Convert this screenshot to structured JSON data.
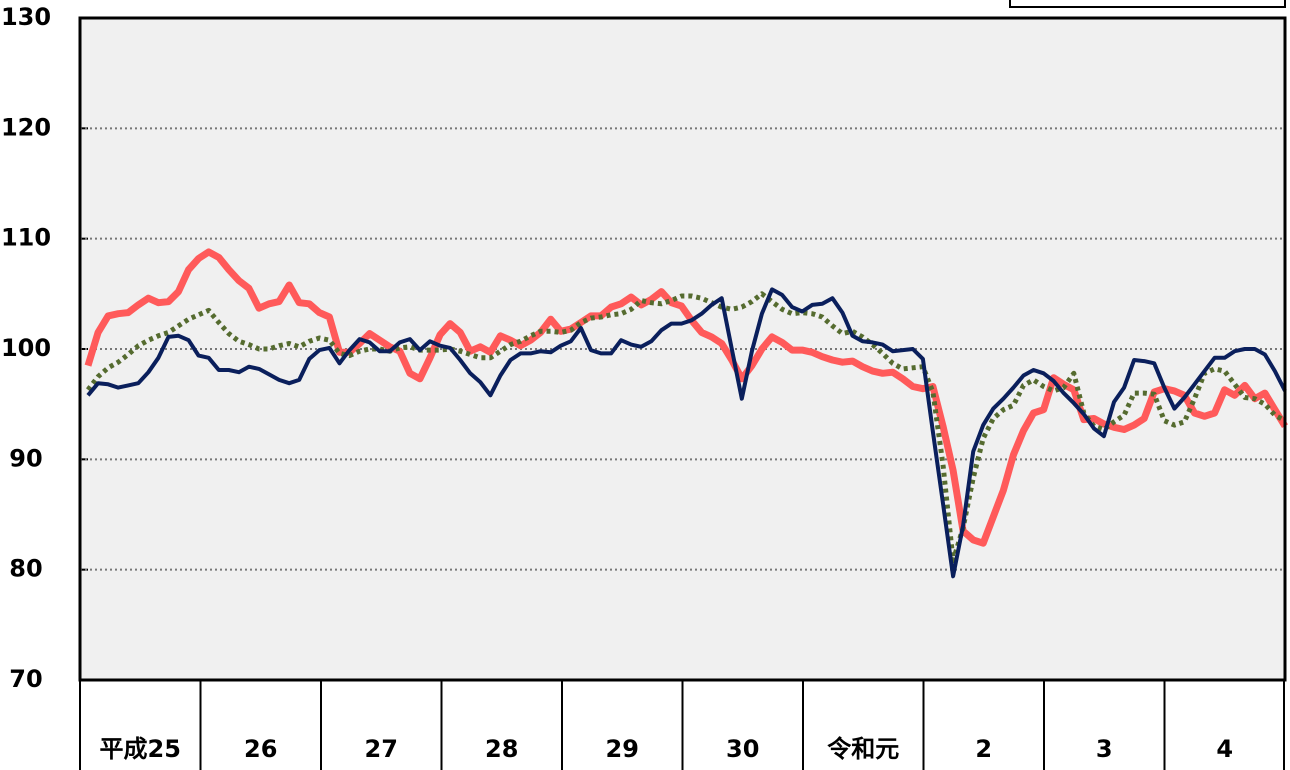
{
  "chart_data": {
    "type": "line",
    "categories": [
      "平成25",
      null,
      null,
      null,
      null,
      null,
      null,
      null,
      null,
      null,
      null,
      null,
      "26",
      null,
      null,
      null,
      null,
      null,
      null,
      null,
      null,
      null,
      null,
      null,
      "27",
      null,
      null,
      null,
      null,
      null,
      null,
      null,
      null,
      null,
      null,
      null,
      "28",
      null,
      null,
      null,
      null,
      null,
      null,
      null,
      null,
      null,
      null,
      null,
      "29",
      null,
      null,
      null,
      null,
      null,
      null,
      null,
      null,
      null,
      null,
      null,
      "30",
      null,
      null,
      null,
      null,
      null,
      null,
      null,
      null,
      null,
      null,
      null,
      "令和元",
      null,
      null,
      null,
      null,
      null,
      null,
      null,
      null,
      null,
      null,
      null,
      "2",
      null,
      null,
      null,
      null,
      null,
      null,
      null,
      null,
      null,
      null,
      null,
      "3",
      null,
      null,
      null,
      null,
      null,
      null,
      null,
      null,
      null,
      null,
      null,
      "4",
      null,
      null,
      null,
      null,
      null,
      null,
      null,
      null,
      null,
      null,
      null
    ],
    "series": [
      {
        "color": "#ff5a5a",
        "style": "solid",
        "values": [
          98.5,
          101.5,
          103,
          103.2,
          103.3,
          104,
          104.6,
          104.2,
          104.3,
          105.2,
          107.2,
          108.2,
          108.8,
          108.3,
          107.2,
          106.2,
          105.5,
          103.7,
          104.1,
          104.3,
          105.8,
          104.2,
          104.1,
          103.3,
          102.9,
          99.7,
          99.7,
          100.5,
          101.4,
          100.8,
          100.2,
          99.8,
          97.8,
          97.3,
          99.2,
          101.3,
          102.3,
          101.5,
          99.8,
          100.2,
          99.7,
          101.2,
          100.8,
          100.3,
          100.8,
          101.5,
          102.7,
          101.6,
          101.8,
          102.4,
          103,
          103,
          103.8,
          104.1,
          104.7,
          104,
          104.5,
          105.2,
          104.2,
          103.9,
          102.6,
          101.5,
          101.1,
          100.5,
          99,
          97.3,
          98.5,
          100,
          101.1,
          100.6,
          99.9,
          99.9,
          99.7,
          99.3,
          99,
          98.8,
          98.9,
          98.4,
          98,
          97.8,
          97.9,
          97.3,
          96.6,
          96.4,
          96.6,
          93,
          89,
          83.5,
          82.7,
          82.4,
          84.8,
          87.2,
          90.4,
          92.6,
          94.2,
          94.5,
          97.4,
          96.8,
          96.3,
          93.6,
          93.7,
          93.2,
          92.9,
          92.7,
          93.1,
          93.7,
          96.1,
          96.4,
          96.2,
          95.8,
          94.2,
          93.9,
          94.2,
          96.3,
          95.8,
          96.7,
          95.5,
          96,
          94.5,
          93
        ]
      },
      {
        "color": "#556b2f",
        "style": "dotted",
        "values": [
          96.3,
          97.5,
          98.3,
          98.8,
          99.5,
          100.3,
          100.8,
          101.2,
          101.5,
          102.1,
          102.7,
          103.1,
          103.5,
          102.4,
          101.4,
          100.7,
          100.4,
          100,
          100,
          100.3,
          100.5,
          100.2,
          100.7,
          101,
          100.8,
          99.6,
          99.4,
          99.8,
          100,
          100,
          99.8,
          100.1,
          100.2,
          99.9,
          99.9,
          99.9,
          100,
          99.8,
          99.5,
          99.2,
          99.2,
          99.8,
          100.4,
          100.7,
          101.2,
          101.6,
          101.6,
          101.5,
          101.7,
          102.4,
          102.8,
          102.9,
          103.1,
          103.2,
          103.6,
          104.4,
          104.2,
          104.1,
          104.4,
          104.8,
          104.8,
          104.6,
          104.2,
          103.8,
          103.6,
          103.8,
          104.3,
          105,
          104.3,
          103.6,
          103.2,
          103.3,
          103.2,
          102.9,
          102.1,
          101.4,
          101.6,
          101.1,
          100.4,
          99.6,
          98.7,
          98.2,
          98.3,
          98.4,
          96.1,
          89.5,
          80.8,
          83.8,
          88.3,
          91.9,
          93.7,
          94.5,
          94.9,
          96.7,
          97.2,
          96.6,
          96.2,
          96.5,
          97.8,
          94.2,
          93,
          92.7,
          93.4,
          94,
          96,
          96,
          95.9,
          93.5,
          93.1,
          93.4,
          95.5,
          97.8,
          98.2,
          98,
          96.8,
          95.6,
          95.5,
          95,
          94,
          93.5
        ]
      },
      {
        "color": "#0a1f5c",
        "style": "solid",
        "values": [
          95.8,
          96.9,
          96.8,
          96.5,
          96.7,
          96.9,
          97.9,
          99.2,
          101.1,
          101.2,
          100.8,
          99.4,
          99.2,
          98.1,
          98.1,
          97.9,
          98.4,
          98.2,
          97.7,
          97.2,
          96.9,
          97.2,
          99.1,
          99.9,
          100.1,
          98.7,
          99.9,
          100.9,
          100.6,
          99.8,
          99.8,
          100.6,
          100.9,
          99.9,
          100.7,
          100.3,
          100.1,
          99,
          97.8,
          97,
          95.8,
          97.6,
          99,
          99.6,
          99.6,
          99.8,
          99.7,
          100.3,
          100.7,
          101.9,
          99.9,
          99.6,
          99.6,
          100.8,
          100.4,
          100.2,
          100.7,
          101.7,
          102.3,
          102.3,
          102.6,
          103.2,
          104,
          104.6,
          100,
          95.5,
          99.8,
          103.2,
          105.4,
          104.9,
          103.8,
          103.4,
          104,
          104.1,
          104.6,
          103.3,
          101.2,
          100.7,
          100.6,
          100.4,
          99.8,
          99.9,
          100,
          99.1,
          92.5,
          86,
          79.4,
          84,
          90.7,
          93.1,
          94.6,
          95.5,
          96.5,
          97.6,
          98.1,
          97.8,
          97.1,
          96,
          95.1,
          94.1,
          92.8,
          92.1,
          95.2,
          96.5,
          99,
          98.9,
          98.7,
          96.5,
          94.6,
          95.6,
          96.8,
          98,
          99.2,
          99.2,
          99.8,
          100,
          100,
          99.5,
          98,
          96.2
        ]
      }
    ],
    "ylim": [
      70,
      130
    ],
    "yticks": [
      70,
      80,
      90,
      100,
      110,
      120,
      130
    ],
    "grid": true
  }
}
